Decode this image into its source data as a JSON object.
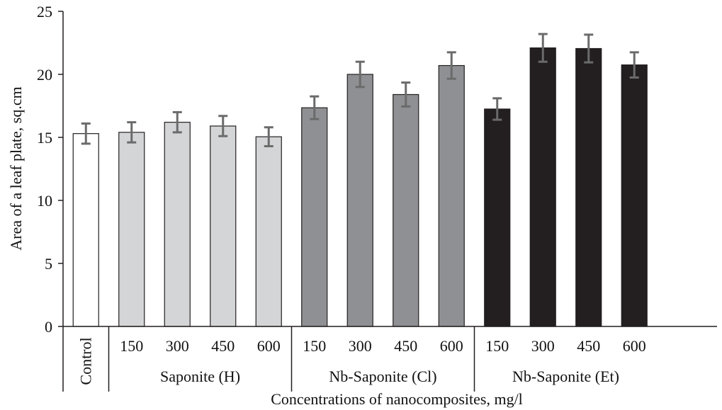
{
  "chart_data": {
    "type": "bar",
    "ylabel": "Area of a leaf plate, sq.cm",
    "xlabel": "Concentrations of nanocomposites, mg/l",
    "ylim": [
      0,
      25
    ],
    "yticks": [
      0,
      5,
      10,
      15,
      20,
      25
    ],
    "grid": false,
    "legend": "none",
    "bars": [
      {
        "group": "",
        "label": "Control",
        "value": 15.3,
        "error": 0.8,
        "color": "#ffffff"
      },
      {
        "group": "Saponite (H)",
        "label": "150",
        "value": 15.4,
        "error": 0.8,
        "color": "#d4d5d7"
      },
      {
        "group": "Saponite (H)",
        "label": "300",
        "value": 16.2,
        "error": 0.8,
        "color": "#d4d5d7"
      },
      {
        "group": "Saponite (H)",
        "label": "450",
        "value": 15.9,
        "error": 0.8,
        "color": "#d4d5d7"
      },
      {
        "group": "Saponite (H)",
        "label": "600",
        "value": 15.05,
        "error": 0.75,
        "color": "#d4d5d7"
      },
      {
        "group": "Nb-Saponite (Cl)",
        "label": "150",
        "value": 17.35,
        "error": 0.9,
        "color": "#8f9093"
      },
      {
        "group": "Nb-Saponite (Cl)",
        "label": "300",
        "value": 20.0,
        "error": 1.0,
        "color": "#8f9093"
      },
      {
        "group": "Nb-Saponite (Cl)",
        "label": "450",
        "value": 18.4,
        "error": 0.95,
        "color": "#8f9093"
      },
      {
        "group": "Nb-Saponite (Cl)",
        "label": "600",
        "value": 20.7,
        "error": 1.05,
        "color": "#8f9093"
      },
      {
        "group": "Nb-Saponite (Et)",
        "label": "150",
        "value": 17.25,
        "error": 0.85,
        "color": "#231f20"
      },
      {
        "group": "Nb-Saponite (Et)",
        "label": "300",
        "value": 22.1,
        "error": 1.1,
        "color": "#231f20"
      },
      {
        "group": "Nb-Saponite (Et)",
        "label": "450",
        "value": 22.05,
        "error": 1.1,
        "color": "#231f20"
      },
      {
        "group": "Nb-Saponite (Et)",
        "label": "600",
        "value": 20.75,
        "error": 1.0,
        "color": "#231f20"
      }
    ],
    "groups": [
      "Saponite (H)",
      "Nb-Saponite (Cl)",
      "Nb-Saponite (Et)"
    ],
    "errorbar_color": "#6b6b6b",
    "bar_edge_color": "#231f20"
  }
}
